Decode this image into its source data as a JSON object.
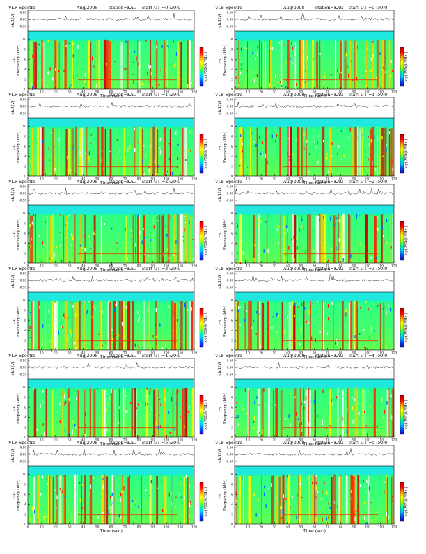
{
  "common": {
    "program": "VLF Spectra",
    "date": "Aug/2008",
    "station": "station=KAG",
    "start_prefix": "start  UT =",
    "waveform_label": "ch.1(V)",
    "waveform_ticks": [
      "0.50",
      "0.00",
      "-0.50"
    ],
    "freq_label": "Frequency (kHz)",
    "freq_channel": "ch1",
    "freq_ticks": [
      "0",
      "2",
      "4",
      "6",
      "8",
      "10"
    ],
    "x_label": "Time (sec)",
    "x_ticks": [
      "0",
      "10",
      "20",
      "30",
      "40",
      "50",
      "60",
      "70",
      "80",
      "90",
      "100",
      "110",
      "120"
    ],
    "colorbar_label": "log(PSD(V²/Hz))",
    "colorbar_colors": [
      "#1a00b4",
      "#0050ff",
      "#00c8ff",
      "#00ff90",
      "#a8ff00",
      "#ffff00",
      "#ff9000",
      "#ff0000",
      "#c80000"
    ]
  },
  "chart_data": [
    {
      "type": "heatmap",
      "start_ut": "0 :20:0",
      "xlim": [
        0,
        120
      ],
      "ylim": [
        0,
        10
      ]
    },
    {
      "type": "heatmap",
      "start_ut": "0 :50:0",
      "xlim": [
        0,
        120
      ],
      "ylim": [
        0,
        10
      ]
    },
    {
      "type": "heatmap",
      "start_ut": "1 :20:0",
      "xlim": [
        0,
        120
      ],
      "ylim": [
        0,
        10
      ]
    },
    {
      "type": "heatmap",
      "start_ut": "1 :50:0",
      "xlim": [
        0,
        120
      ],
      "ylim": [
        0,
        10
      ]
    },
    {
      "type": "heatmap",
      "start_ut": "2 :20:0",
      "xlim": [
        0,
        120
      ],
      "ylim": [
        0,
        10
      ]
    },
    {
      "type": "heatmap",
      "start_ut": "2 :50:0",
      "xlim": [
        0,
        120
      ],
      "ylim": [
        0,
        10
      ]
    },
    {
      "type": "heatmap",
      "start_ut": "3 :20:0",
      "xlim": [
        0,
        120
      ],
      "ylim": [
        0,
        10
      ]
    },
    {
      "type": "heatmap",
      "start_ut": "3 :50:0",
      "xlim": [
        0,
        120
      ],
      "ylim": [
        0,
        10
      ]
    },
    {
      "type": "heatmap",
      "start_ut": "4 :20:0",
      "xlim": [
        0,
        120
      ],
      "ylim": [
        0,
        10
      ]
    },
    {
      "type": "heatmap",
      "start_ut": "4 :50:0",
      "xlim": [
        0,
        120
      ],
      "ylim": [
        0,
        10
      ]
    },
    {
      "type": "heatmap",
      "start_ut": "5 :20:0",
      "xlim": [
        0,
        120
      ],
      "ylim": [
        0,
        10
      ]
    },
    {
      "type": "heatmap",
      "start_ut": "5 :50:0",
      "xlim": [
        0,
        120
      ],
      "ylim": [
        0,
        10
      ]
    }
  ]
}
